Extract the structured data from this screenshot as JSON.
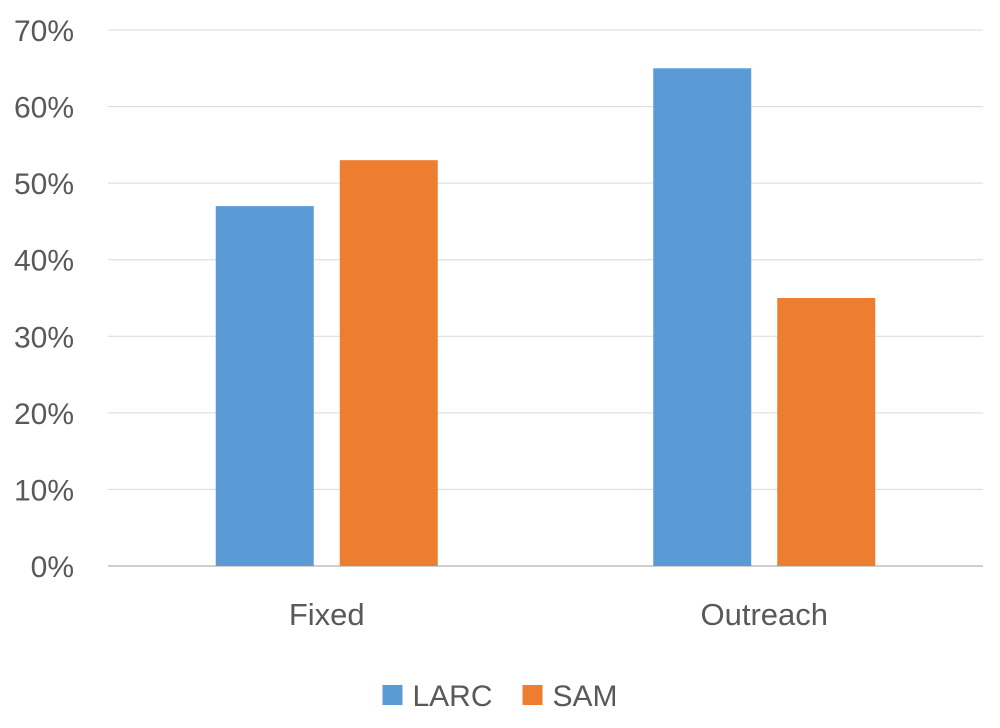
{
  "chart_data": {
    "type": "bar",
    "title": "",
    "xlabel": "",
    "ylabel": "",
    "categories": [
      "Fixed",
      "Outreach"
    ],
    "series": [
      {
        "name": "LARC",
        "values": [
          47,
          65
        ],
        "color": "#5B9BD5"
      },
      {
        "name": "SAM",
        "values": [
          53,
          35
        ],
        "color": "#ED7D31"
      }
    ],
    "ylim": [
      0,
      70
    ],
    "yticks": [
      0,
      10,
      20,
      30,
      40,
      50,
      60,
      70
    ],
    "tick_format": "{v}%",
    "grid": true,
    "legend": "bottom"
  }
}
